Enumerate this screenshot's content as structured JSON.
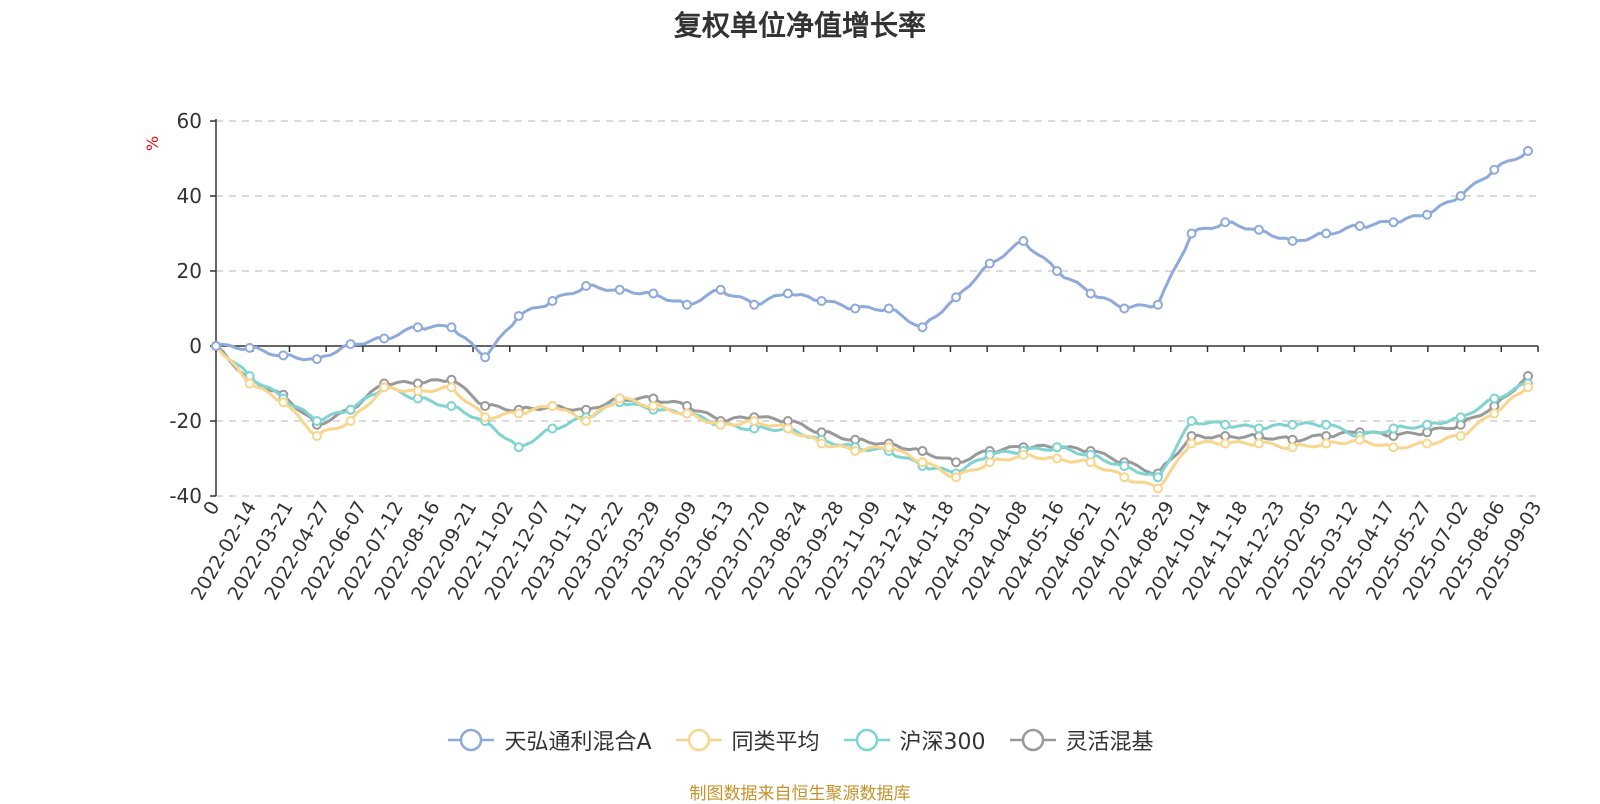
{
  "chart_data": {
    "type": "line",
    "title": "复权单位净值增长率",
    "ylabel": "%",
    "ylim": [
      -40,
      60
    ],
    "yticks": [
      60,
      40,
      20,
      0,
      -20,
      -40
    ],
    "grid": true,
    "legend_position": "bottom",
    "x_start_label": "0",
    "x_tick_labels": [
      "2022-02-14",
      "2022-03-21",
      "2022-04-27",
      "2022-06-07",
      "2022-07-12",
      "2022-08-16",
      "2022-09-21",
      "2022-11-02",
      "2022-12-07",
      "2023-01-11",
      "2023-02-22",
      "2023-03-29",
      "2023-05-09",
      "2023-06-13",
      "2023-07-20",
      "2023-08-24",
      "2023-09-28",
      "2023-11-09",
      "2023-12-14",
      "2024-01-18",
      "2024-03-01",
      "2024-04-08",
      "2024-05-16",
      "2024-06-21",
      "2024-07-25",
      "2024-08-29",
      "2024-10-14",
      "2024-11-18",
      "2024-12-23",
      "2025-02-05",
      "2025-03-12",
      "2025-04-17",
      "2025-05-27",
      "2025-07-02",
      "2025-08-06",
      "2025-09-03"
    ],
    "series": [
      {
        "name": "天弘通利混合A",
        "color": "#8eaadb",
        "values": [
          0,
          -0.5,
          -2.5,
          -3.5,
          0.5,
          2,
          5,
          5,
          -3,
          8,
          12,
          16,
          15,
          14,
          11,
          15,
          11,
          14,
          12,
          10,
          10,
          5,
          13,
          22,
          28,
          20,
          14,
          10,
          11,
          30,
          33,
          31,
          28,
          30,
          32,
          33,
          35,
          40,
          47,
          52
        ]
      },
      {
        "name": "同类平均",
        "color": "#f8d68e",
        "values": [
          0,
          -10,
          -15,
          -24,
          -20,
          -11,
          -12,
          -11,
          -19,
          -18,
          -16,
          -20,
          -14,
          -16,
          -18,
          -21,
          -20,
          -22,
          -26,
          -28,
          -27,
          -31,
          -35,
          -31,
          -29,
          -30,
          -31,
          -35,
          -38,
          -26,
          -26,
          -26,
          -27,
          -26,
          -25,
          -27,
          -26,
          -24,
          -18,
          -11
        ]
      },
      {
        "name": "沪深300",
        "color": "#7fd4d1",
        "values": [
          0,
          -8,
          -14,
          -20,
          -17,
          -11,
          -14,
          -16,
          -20,
          -27,
          -22,
          -19,
          -15,
          -17,
          -18,
          -21,
          -22,
          -22,
          -25,
          -27,
          -28,
          -32,
          -34,
          -29,
          -28,
          -27,
          -29,
          -32,
          -35,
          -20,
          -21,
          -22,
          -21,
          -21,
          -24,
          -22,
          -21,
          -19,
          -14,
          -10
        ]
      },
      {
        "name": "灵活混基",
        "color": "#999999",
        "values": [
          0,
          -9,
          -13,
          -21,
          -17,
          -10,
          -10,
          -9,
          -16,
          -17,
          -16,
          -17,
          -14,
          -14,
          -16,
          -20,
          -19,
          -20,
          -23,
          -25,
          -26,
          -28,
          -31,
          -28,
          -27,
          -27,
          -28,
          -31,
          -34,
          -24,
          -24,
          -24,
          -25,
          -24,
          -23,
          -24,
          -23,
          -21,
          -16,
          -8
        ]
      }
    ]
  },
  "footer": {
    "source": "制图数据来自恒生聚源数据库"
  }
}
